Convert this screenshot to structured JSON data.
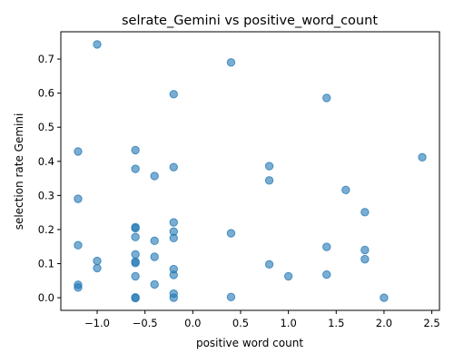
{
  "chart_data": {
    "type": "scatter",
    "title": "selrate_Gemini vs positive_word_count",
    "xlabel": "positive word count",
    "ylabel": "selection rate Gemini",
    "xlim": [
      -1.38,
      2.58
    ],
    "ylim": [
      -0.037,
      0.78
    ],
    "xticks": [
      -1.0,
      -0.5,
      0.0,
      0.5,
      1.0,
      1.5,
      2.0,
      2.5
    ],
    "xtick_labels": [
      "−1.0",
      "−0.5",
      "0.0",
      "0.5",
      "1.0",
      "1.5",
      "2.0",
      "2.5"
    ],
    "yticks": [
      0.0,
      0.1,
      0.2,
      0.3,
      0.4,
      0.5,
      0.6,
      0.7
    ],
    "ytick_labels": [
      "0.0",
      "0.1",
      "0.2",
      "0.3",
      "0.4",
      "0.5",
      "0.6",
      "0.7"
    ],
    "grid": false,
    "marker_color": "#1f77b4",
    "marker_alpha": 0.6,
    "points": [
      {
        "x": -1.0,
        "y": 0.743
      },
      {
        "x": -1.2,
        "y": 0.429
      },
      {
        "x": -1.2,
        "y": 0.29
      },
      {
        "x": -1.2,
        "y": 0.154
      },
      {
        "x": -1.2,
        "y": 0.038
      },
      {
        "x": -1.2,
        "y": 0.03
      },
      {
        "x": -1.0,
        "y": 0.108
      },
      {
        "x": -1.0,
        "y": 0.087
      },
      {
        "x": -0.6,
        "y": 0.433
      },
      {
        "x": -0.6,
        "y": 0.378
      },
      {
        "x": -0.6,
        "y": 0.207
      },
      {
        "x": -0.6,
        "y": 0.204
      },
      {
        "x": -0.6,
        "y": 0.178
      },
      {
        "x": -0.6,
        "y": 0.127
      },
      {
        "x": -0.6,
        "y": 0.106
      },
      {
        "x": -0.6,
        "y": 0.102
      },
      {
        "x": -0.6,
        "y": 0.063
      },
      {
        "x": -0.6,
        "y": 0.001
      },
      {
        "x": -0.6,
        "y": -0.001
      },
      {
        "x": -0.4,
        "y": 0.357
      },
      {
        "x": -0.4,
        "y": 0.167
      },
      {
        "x": -0.4,
        "y": 0.12
      },
      {
        "x": -0.4,
        "y": 0.039
      },
      {
        "x": -0.2,
        "y": 0.597
      },
      {
        "x": -0.2,
        "y": 0.383
      },
      {
        "x": -0.2,
        "y": 0.221
      },
      {
        "x": -0.2,
        "y": 0.194
      },
      {
        "x": -0.2,
        "y": 0.175
      },
      {
        "x": -0.2,
        "y": 0.084
      },
      {
        "x": -0.2,
        "y": 0.067
      },
      {
        "x": -0.2,
        "y": 0.012
      },
      {
        "x": -0.2,
        "y": 0.0
      },
      {
        "x": 0.4,
        "y": 0.69
      },
      {
        "x": 0.4,
        "y": 0.189
      },
      {
        "x": 0.4,
        "y": 0.002
      },
      {
        "x": 0.8,
        "y": 0.386
      },
      {
        "x": 0.8,
        "y": 0.344
      },
      {
        "x": 0.8,
        "y": 0.098
      },
      {
        "x": 1.0,
        "y": 0.063
      },
      {
        "x": 1.4,
        "y": 0.586
      },
      {
        "x": 1.4,
        "y": 0.149
      },
      {
        "x": 1.4,
        "y": 0.068
      },
      {
        "x": 1.6,
        "y": 0.316
      },
      {
        "x": 1.8,
        "y": 0.251
      },
      {
        "x": 1.8,
        "y": 0.14
      },
      {
        "x": 1.8,
        "y": 0.113
      },
      {
        "x": 2.0,
        "y": 0.0
      },
      {
        "x": 2.4,
        "y": 0.412
      }
    ]
  }
}
